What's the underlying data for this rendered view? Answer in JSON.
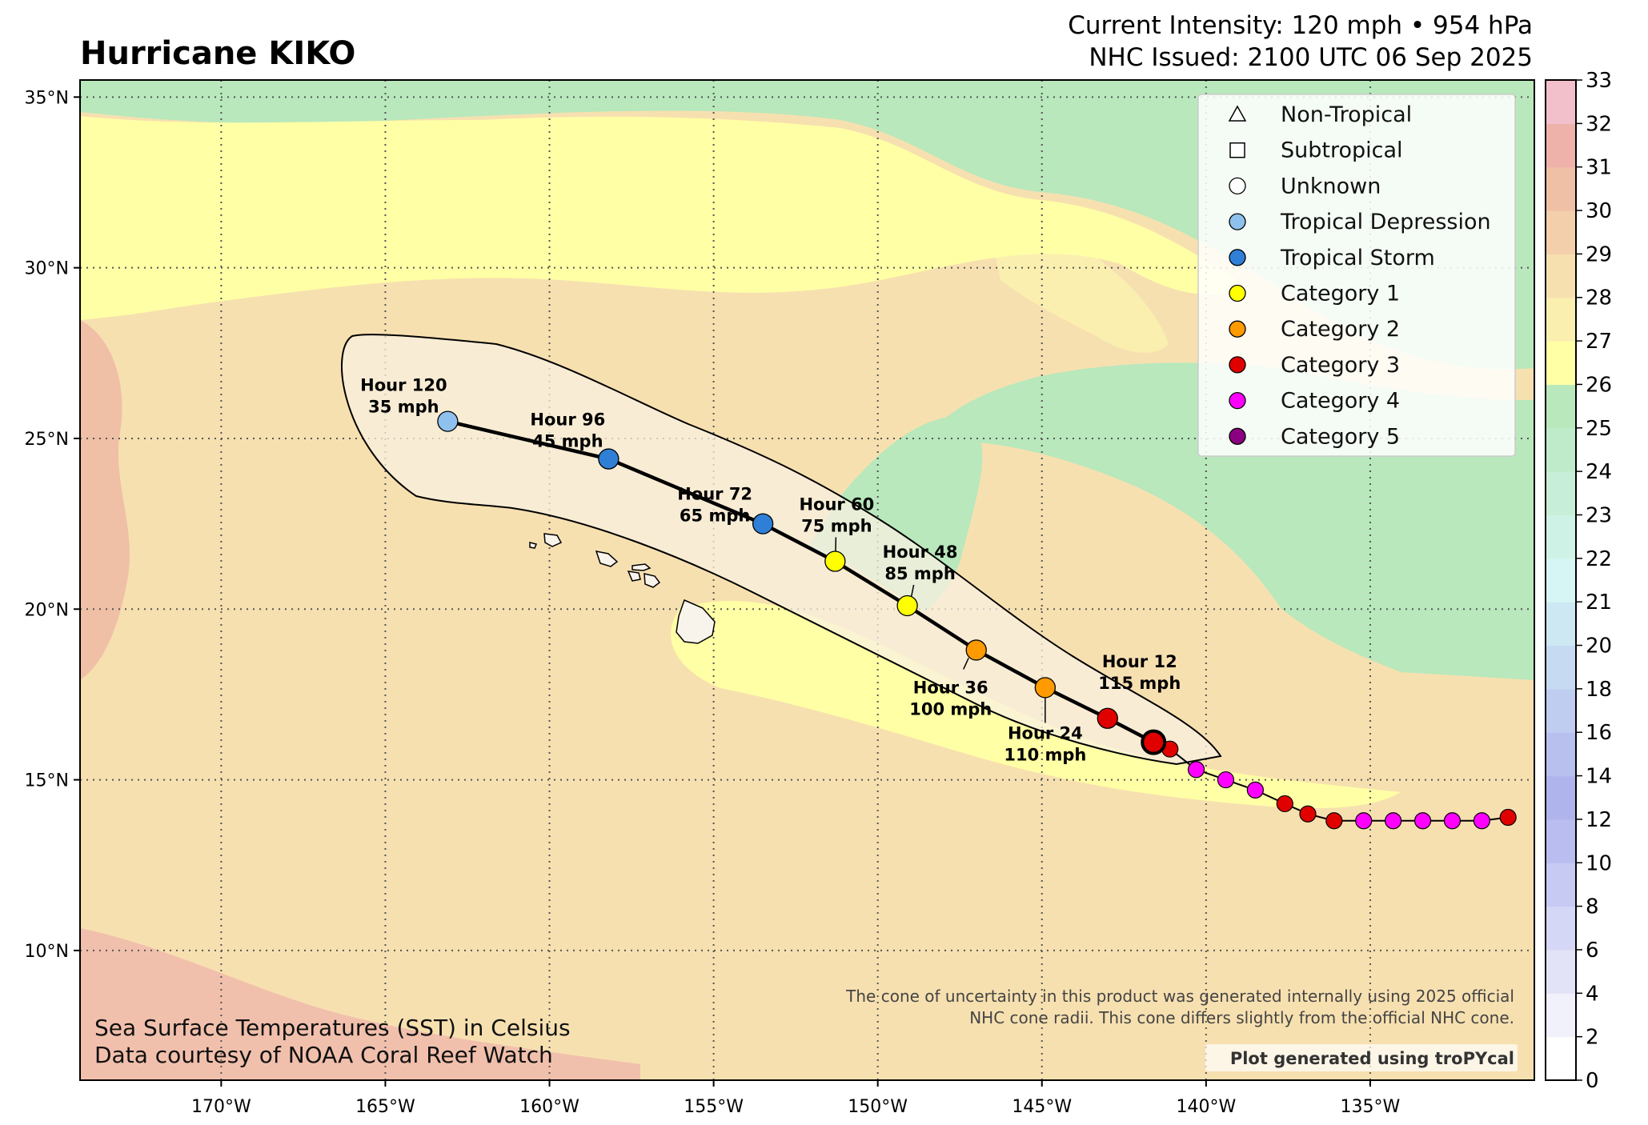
{
  "header": {
    "title": "Hurricane KIKO",
    "intensity": "Current Intensity: 120 mph • 954 hPa",
    "issued": "NHC Issued: 2100 UTC 06 Sep 2025"
  },
  "footer": {
    "sst_line1": "Sea Surface Temperatures (SST) in Celsius",
    "sst_line2": "Data courtesy of NOAA Coral Reef Watch",
    "cone_note_line1": "The cone of uncertainty in this product was generated internally using 2025 official",
    "cone_note_line2": "NHC cone radii. This cone differs slightly from the official NHC cone.",
    "credit": "Plot generated using troPYcal"
  },
  "colors": {
    "tropical_depression": "#8fc1ee",
    "tropical_storm": "#2f7fd6",
    "category_1": "#ffff00",
    "category_2": "#ff9a00",
    "category_3": "#e00000",
    "category_4": "#ff00ff",
    "category_5": "#8b0080"
  },
  "legend": [
    {
      "label": "Non-Tropical",
      "marker": "triangle",
      "color": "#ffffff"
    },
    {
      "label": "Subtropical",
      "marker": "square",
      "color": "#ffffff"
    },
    {
      "label": "Unknown",
      "marker": "circle",
      "color": "#ffffff"
    },
    {
      "label": "Tropical Depression",
      "marker": "circle",
      "color": "#8fc1ee"
    },
    {
      "label": "Tropical Storm",
      "marker": "circle",
      "color": "#2f7fd6"
    },
    {
      "label": "Category 1",
      "marker": "circle",
      "color": "#ffff00"
    },
    {
      "label": "Category 2",
      "marker": "circle",
      "color": "#ff9a00"
    },
    {
      "label": "Category 3",
      "marker": "circle",
      "color": "#e00000"
    },
    {
      "label": "Category 4",
      "marker": "circle",
      "color": "#ff00ff"
    },
    {
      "label": "Category 5",
      "marker": "circle",
      "color": "#8b0080"
    }
  ],
  "map": {
    "lon_range": [
      -174.3,
      -130.0
    ],
    "lat_range": [
      6.2,
      35.5
    ],
    "lon_ticks": [
      {
        "value": -170,
        "label": "170°W"
      },
      {
        "value": -165,
        "label": "165°W"
      },
      {
        "value": -160,
        "label": "160°W"
      },
      {
        "value": -155,
        "label": "155°W"
      },
      {
        "value": -150,
        "label": "150°W"
      },
      {
        "value": -145,
        "label": "145°W"
      },
      {
        "value": -140,
        "label": "140°W"
      },
      {
        "value": -135,
        "label": "135°W"
      }
    ],
    "lat_ticks": [
      {
        "value": 10,
        "label": "10°N"
      },
      {
        "value": 15,
        "label": "15°N"
      },
      {
        "value": 20,
        "label": "20°N"
      },
      {
        "value": 25,
        "label": "25°N"
      },
      {
        "value": 30,
        "label": "30°N"
      },
      {
        "value": 35,
        "label": "35°N"
      }
    ],
    "grid": true
  },
  "colorbar": {
    "ticks": [
      "0",
      "2",
      "4",
      "6",
      "8",
      "10",
      "12",
      "14",
      "16",
      "18",
      "20",
      "21",
      "22",
      "23",
      "24",
      "25",
      "26",
      "27",
      "28",
      "29",
      "30",
      "31",
      "32",
      "33"
    ],
    "colors": [
      "#ffffff",
      "#f1f1fc",
      "#e3e3f8",
      "#d5d7f6",
      "#c7caf3",
      "#b9bdf0",
      "#b0b4ec",
      "#b8c0ee",
      "#bfcdf0",
      "#c6dbf1",
      "#cde8f3",
      "#d6f5f5",
      "#cff2e6",
      "#c7eed8",
      "#c0ebca",
      "#b8e8bc",
      "#ffffa6",
      "#fbefb0",
      "#f7e0b0",
      "#f3d0ab",
      "#efc0a6",
      "#eeb2ab",
      "#f1c0cb",
      "#f8dcee"
    ]
  },
  "past_track": {
    "points": [
      {
        "lon": -130.8,
        "lat": 13.9,
        "color": "#e00000"
      },
      {
        "lon": -131.6,
        "lat": 13.8,
        "color": "#ff00ff"
      },
      {
        "lon": -132.5,
        "lat": 13.8,
        "color": "#ff00ff"
      },
      {
        "lon": -133.4,
        "lat": 13.8,
        "color": "#ff00ff"
      },
      {
        "lon": -134.3,
        "lat": 13.8,
        "color": "#ff00ff"
      },
      {
        "lon": -135.2,
        "lat": 13.8,
        "color": "#ff00ff"
      },
      {
        "lon": -136.1,
        "lat": 13.8,
        "color": "#e00000"
      },
      {
        "lon": -136.9,
        "lat": 14.0,
        "color": "#e00000"
      },
      {
        "lon": -137.6,
        "lat": 14.3,
        "color": "#e00000"
      },
      {
        "lon": -138.5,
        "lat": 14.7,
        "color": "#ff00ff"
      },
      {
        "lon": -139.4,
        "lat": 15.0,
        "color": "#ff00ff"
      },
      {
        "lon": -140.3,
        "lat": 15.3,
        "color": "#ff00ff"
      },
      {
        "lon": -141.1,
        "lat": 15.9,
        "color": "#e00000"
      }
    ]
  },
  "forecast_track": {
    "current": {
      "lon": -141.6,
      "lat": 16.1,
      "color": "#e00000"
    },
    "points": [
      {
        "lon": -143.0,
        "lat": 16.8,
        "color": "#e00000",
        "label1": "Hour 12",
        "label2": "115 mph"
      },
      {
        "lon": -144.9,
        "lat": 17.7,
        "color": "#ff9a00",
        "label1": "Hour 24",
        "label2": "110 mph"
      },
      {
        "lon": -147.0,
        "lat": 18.8,
        "color": "#ff9a00",
        "label1": "Hour 36",
        "label2": "100 mph"
      },
      {
        "lon": -149.1,
        "lat": 20.1,
        "color": "#ffff00",
        "label1": "Hour 48",
        "label2": "85 mph"
      },
      {
        "lon": -151.3,
        "lat": 21.4,
        "color": "#ffff00",
        "label1": "Hour 60",
        "label2": "75 mph"
      },
      {
        "lon": -153.5,
        "lat": 22.5,
        "color": "#2f7fd6",
        "label1": "Hour 72",
        "label2": "65 mph"
      },
      {
        "lon": -158.2,
        "lat": 24.4,
        "color": "#2f7fd6",
        "label1": "Hour 96",
        "label2": "45 mph"
      },
      {
        "lon": -163.1,
        "lat": 25.5,
        "color": "#8fc1ee",
        "label1": "Hour 120",
        "label2": "35 mph"
      }
    ]
  }
}
